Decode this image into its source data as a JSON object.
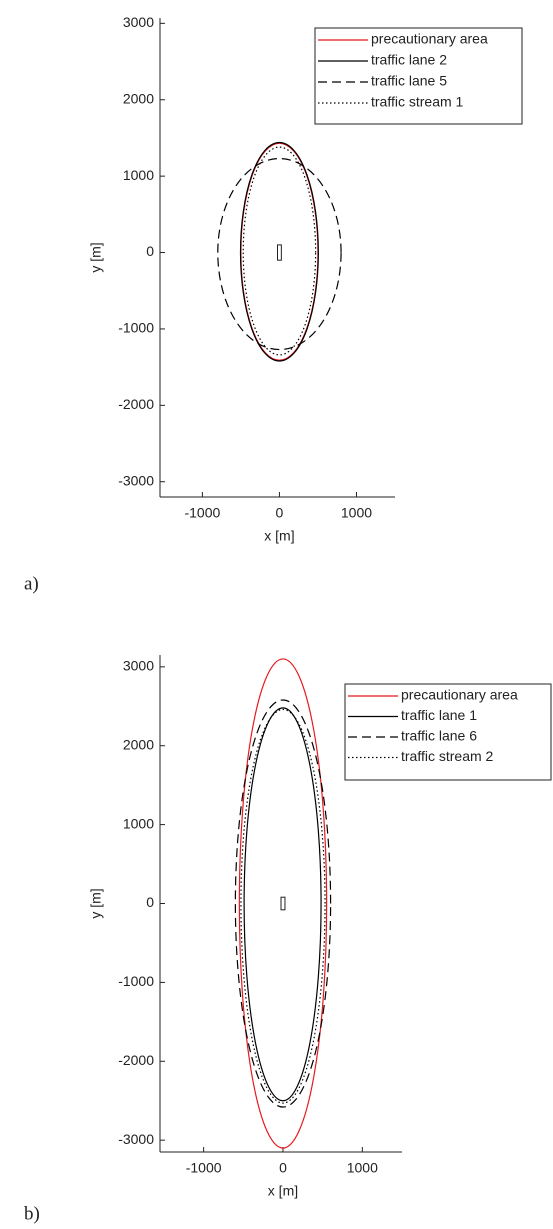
{
  "chart_data": [
    {
      "type": "ellipse",
      "label": "a)",
      "xlabel": "x [m]",
      "ylabel": "y [m]",
      "xlim": [
        -1550,
        1500
      ],
      "ylim": [
        -3200,
        3070
      ],
      "xticks": [
        -1000,
        0,
        1000
      ],
      "yticks": [
        -3000,
        -2000,
        -1000,
        0,
        1000,
        2000,
        3000
      ],
      "ship": {
        "x": [
          -25,
          25
        ],
        "y": [
          -100,
          100
        ]
      },
      "series": [
        {
          "name": "precautionary area",
          "color": "#e8191c",
          "linestyle": "solid",
          "x": [
            500,
            0,
            -500,
            0
          ],
          "y": [
            0,
            1430,
            0,
            -1410
          ]
        },
        {
          "name": "traffic lane 2",
          "color": "#000000",
          "linestyle": "solid",
          "x": [
            505,
            0,
            -505,
            0
          ],
          "y": [
            0,
            1440,
            0,
            -1420
          ]
        },
        {
          "name": "traffic lane 5",
          "color": "#000000",
          "linestyle": "dashed",
          "x": [
            800,
            0,
            -800,
            0
          ],
          "y": [
            0,
            1230,
            0,
            -1270
          ]
        },
        {
          "name": "traffic stream 1",
          "color": "#000000",
          "linestyle": "dotted",
          "x": [
            470,
            0,
            -470,
            0
          ],
          "y": [
            0,
            1380,
            0,
            -1340
          ]
        }
      ]
    },
    {
      "type": "ellipse",
      "label": "b)",
      "xlabel": "x [m]",
      "ylabel": "y [m]",
      "xlim": [
        -1550,
        1500
      ],
      "ylim": [
        -3150,
        3150
      ],
      "xticks": [
        -1000,
        0,
        1000
      ],
      "yticks": [
        -3000,
        -2000,
        -1000,
        0,
        1000,
        2000,
        3000
      ],
      "ship": {
        "x": [
          -25,
          25
        ],
        "y": [
          -80,
          80
        ]
      },
      "series": [
        {
          "name": "precautionary area",
          "color": "#e8191c",
          "linestyle": "solid",
          "x": [
            550,
            0,
            -550,
            0
          ],
          "y": [
            0,
            3100,
            0,
            -3100
          ]
        },
        {
          "name": "traffic lane 1",
          "color": "#000000",
          "linestyle": "solid",
          "x": [
            480,
            0,
            -490,
            0
          ],
          "y": [
            0,
            2480,
            0,
            -2500
          ]
        },
        {
          "name": "traffic lane 6",
          "color": "#000000",
          "linestyle": "dashed",
          "x": [
            600,
            0,
            -600,
            0
          ],
          "y": [
            0,
            2580,
            0,
            -2580
          ]
        },
        {
          "name": "traffic stream 2",
          "color": "#000000",
          "linestyle": "dotted",
          "x": [
            530,
            0,
            -530,
            0
          ],
          "y": [
            0,
            2460,
            0,
            -2530
          ]
        }
      ]
    }
  ]
}
